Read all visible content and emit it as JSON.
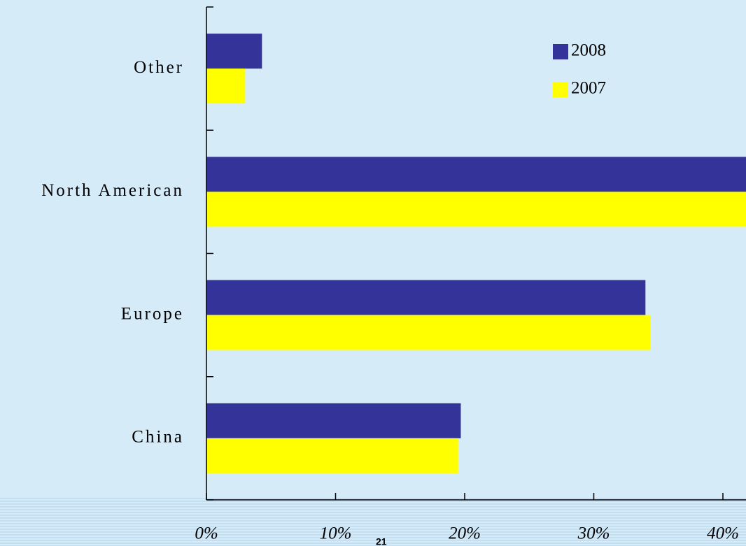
{
  "chart_data": {
    "type": "hbar",
    "categories": [
      "Other",
      "North American",
      "Europe",
      "China"
    ],
    "series": [
      {
        "name": "2008",
        "color": "#333399",
        "values": [
          4.3,
          43,
          34.0,
          19.7
        ]
      },
      {
        "name": "2007",
        "color": "#ffff00",
        "values": [
          3.0,
          43,
          34.4,
          19.5
        ]
      }
    ],
    "xlim": [
      0,
      45
    ],
    "xticks": [
      {
        "value": 0,
        "label": "0%"
      },
      {
        "value": 10,
        "label": "10%"
      },
      {
        "value": 20,
        "label": "20%"
      },
      {
        "value": 30,
        "label": "30%"
      },
      {
        "value": 40,
        "label": "40%"
      }
    ],
    "legend": "top-right",
    "page_number": "21"
  }
}
